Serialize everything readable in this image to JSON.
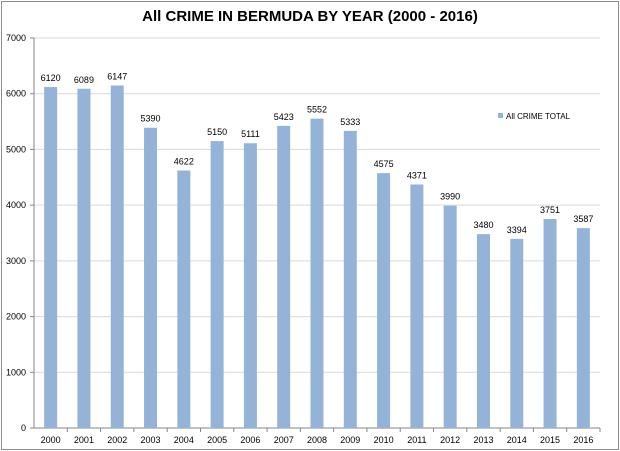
{
  "chart_data": {
    "type": "bar",
    "title": "All CRIME IN BERMUDA BY YEAR (2000 - 2016)",
    "xlabel": "",
    "ylabel": "",
    "categories": [
      "2000",
      "2001",
      "2002",
      "2003",
      "2004",
      "2005",
      "2006",
      "2007",
      "2008",
      "2009",
      "2010",
      "2011",
      "2012",
      "2013",
      "2014",
      "2015",
      "2016"
    ],
    "series": [
      {
        "name": "All CRIME TOTAL",
        "values": [
          6120,
          6089,
          6147,
          5390,
          4622,
          5150,
          5111,
          5423,
          5552,
          5333,
          4575,
          4371,
          3990,
          3480,
          3394,
          3751,
          3587
        ]
      }
    ],
    "ylim": [
      0,
      7000
    ],
    "yticks": [
      0,
      1000,
      2000,
      3000,
      4000,
      5000,
      6000,
      7000
    ],
    "grid": true,
    "legend_position": "right",
    "bar_color": "#95b3d7",
    "grid_color": "#d9d9d9"
  }
}
